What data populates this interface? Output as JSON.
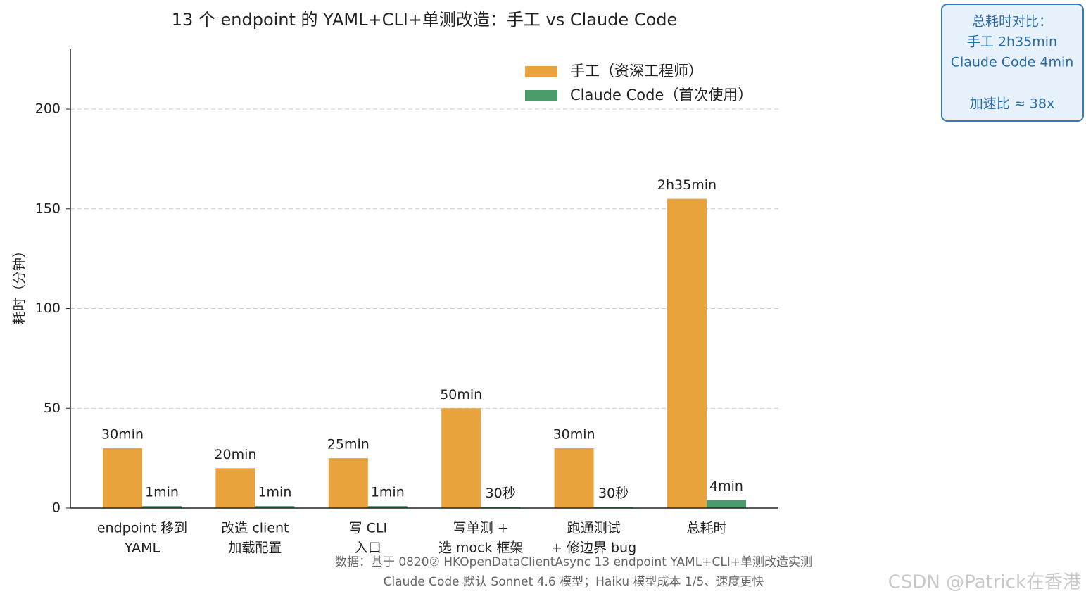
{
  "chart_data": {
    "type": "bar",
    "title": "13 个 endpoint 的 YAML+CLI+单测改造：手工 vs Claude Code",
    "ylabel": "耗时（分钟）",
    "categories": [
      [
        "endpoint 移到",
        "YAML"
      ],
      [
        "改造 client",
        "加载配置"
      ],
      [
        "写 CLI",
        "入口"
      ],
      [
        "写单测 +",
        "选 mock 框架"
      ],
      [
        "跑通测试",
        "+ 修边界 bug"
      ],
      [
        "总耗时"
      ]
    ],
    "series": [
      {
        "name": "手工（资深工程师）",
        "color": "#e8a33d",
        "label_color": "#555555",
        "values": [
          30,
          20,
          25,
          50,
          30,
          155
        ],
        "value_labels": [
          "30min",
          "20min",
          "25min",
          "50min",
          "30min",
          "2h35min"
        ]
      },
      {
        "name": "Claude Code（首次使用）",
        "color": "#4a9a6a",
        "label_color": "#3a8a3a",
        "values": [
          1,
          1,
          1,
          0.5,
          0.5,
          4
        ],
        "value_labels": [
          "1min",
          "1min",
          "1min",
          "30秒",
          "30秒",
          "4min"
        ]
      }
    ],
    "ylim": [
      0,
      230
    ],
    "yticks": [
      0,
      50,
      100,
      150,
      200
    ],
    "grid": true,
    "legend": "upper right",
    "annotation": [
      "总耗时对比：",
      "手工 2h35min",
      "Claude Code 4min",
      "加速比 ≈ 38x"
    ],
    "footnote": [
      "数据：基于 0820② HKOpenDataClientAsync 13 endpoint YAML+CLI+单测改造实测",
      "Claude Code 默认 Sonnet 4.6 模型；Haiku 模型成本 1/5、速度更快"
    ],
    "watermark": "CSDN @Patrick在香港"
  }
}
